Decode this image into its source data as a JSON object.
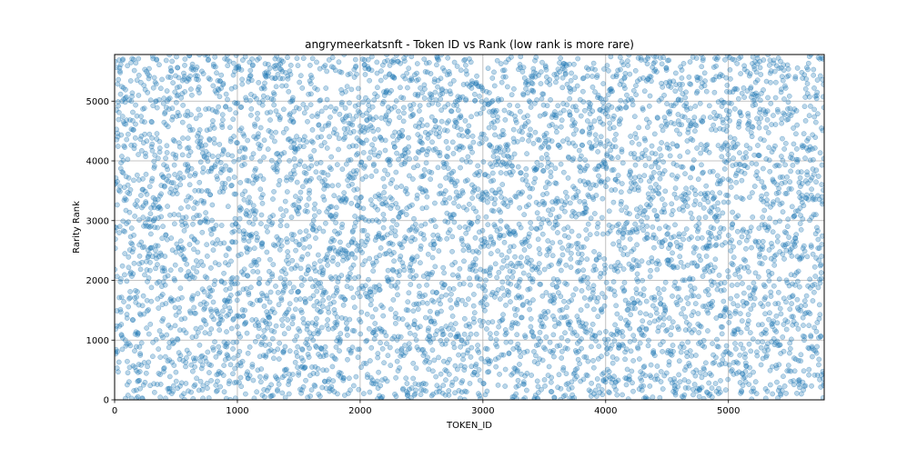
{
  "chart_data": {
    "type": "scatter",
    "title": "angrymeerkatsnft - Token ID vs Rank (low rank is more rare)",
    "xlabel": "TOKEN_ID",
    "ylabel": "Rarity Rank",
    "xlim": [
      0,
      5780
    ],
    "ylim": [
      0,
      5780
    ],
    "xticks": [
      0,
      1000,
      2000,
      3000,
      4000,
      5000
    ],
    "yticks": [
      0,
      1000,
      2000,
      3000,
      4000,
      5000
    ],
    "grid": true,
    "legend": "none",
    "point_count": 5780,
    "distribution": "uniform random rank per token id",
    "marker_color": "#1f77b4",
    "marker_alpha": 0.3,
    "points_sample": [
      [
        0,
        2830
      ],
      [
        50,
        5610
      ],
      [
        100,
        1430
      ],
      [
        150,
        4520
      ],
      [
        200,
        3010
      ],
      [
        300,
        1880
      ],
      [
        400,
        520
      ],
      [
        500,
        2470
      ],
      [
        600,
        3900
      ],
      [
        650,
        1450
      ],
      [
        700,
        1600
      ],
      [
        800,
        4670
      ],
      [
        900,
        3620
      ],
      [
        1000,
        1950
      ],
      [
        1100,
        2520
      ],
      [
        1200,
        960
      ],
      [
        1300,
        1140
      ],
      [
        1400,
        2330
      ],
      [
        1500,
        3330
      ],
      [
        1600,
        5120
      ],
      [
        1700,
        2170
      ],
      [
        1800,
        680
      ],
      [
        1900,
        2450
      ],
      [
        2000,
        4580
      ],
      [
        2100,
        1390
      ],
      [
        2200,
        5660
      ],
      [
        2300,
        2140
      ],
      [
        2400,
        3750
      ],
      [
        2500,
        260
      ],
      [
        2600,
        2600
      ],
      [
        2700,
        1230
      ],
      [
        2800,
        3410
      ],
      [
        2900,
        4210
      ],
      [
        3000,
        1870
      ],
      [
        3100,
        2900
      ],
      [
        3200,
        5240
      ],
      [
        3300,
        810
      ],
      [
        3400,
        2240
      ],
      [
        3500,
        4430
      ],
      [
        3600,
        3050
      ],
      [
        3700,
        180
      ],
      [
        3800,
        1990
      ],
      [
        3900,
        3600
      ],
      [
        4000,
        5030
      ],
      [
        4100,
        2300
      ],
      [
        4200,
        3830
      ],
      [
        4300,
        1320
      ],
      [
        4400,
        4450
      ],
      [
        4500,
        2770
      ],
      [
        4600,
        650
      ],
      [
        4700,
        1740
      ],
      [
        4800,
        3210
      ],
      [
        4900,
        5410
      ],
      [
        5000,
        2060
      ],
      [
        5100,
        930
      ],
      [
        5200,
        1780
      ],
      [
        5300,
        4780
      ],
      [
        5400,
        2650
      ],
      [
        5500,
        950
      ],
      [
        5600,
        3620
      ],
      [
        5700,
        1210
      ],
      [
        5760,
        2600
      ]
    ]
  }
}
